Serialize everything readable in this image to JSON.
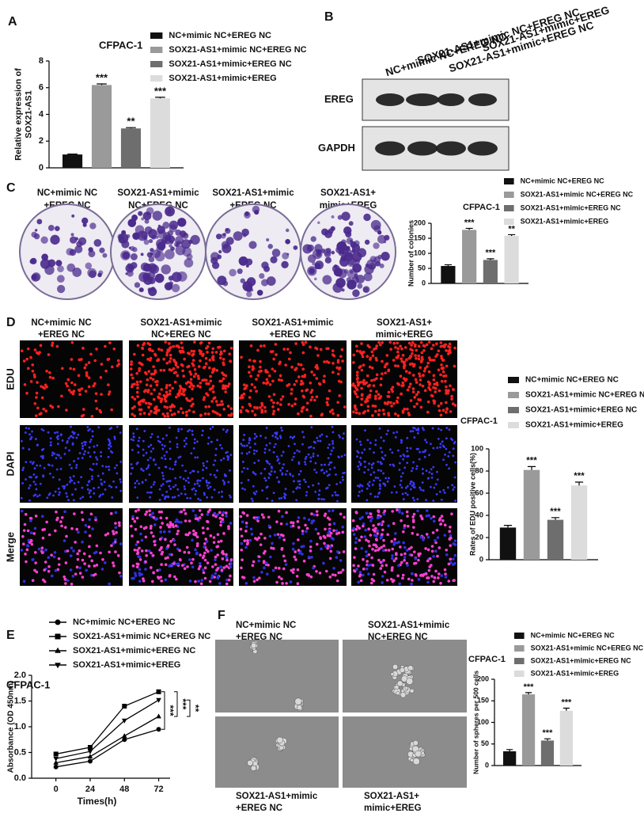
{
  "panel_labels": [
    "A",
    "B",
    "C",
    "D",
    "E",
    "F"
  ],
  "blot": {
    "lanes": [
      "NC+mimic NC+EREG NC",
      "SOX21-AS1+mimic NC+EREG NC",
      "SOX21-AS1+mimic+EREG NC",
      "SOX21-AS1+mimic+EREG"
    ],
    "bands": [
      "EREG",
      "GAPDH"
    ]
  },
  "colony_labels": [
    [
      "NC+mimic NC",
      "+EREG NC"
    ],
    [
      "SOX21-AS1+mimic",
      "NC+EREG NC"
    ],
    [
      "SOX21-AS1+mimic",
      "+EREG NC"
    ],
    [
      "SOX21-AS1+",
      "mimic+EREG"
    ]
  ],
  "edu": {
    "columns": [
      [
        "NC+mimic NC",
        "+EREG NC"
      ],
      [
        "SOX21-AS1+mimic",
        "NC+EREG NC"
      ],
      [
        "SOX21-AS1+mimic",
        "+EREG NC"
      ],
      [
        "SOX21-AS1+",
        "mimic+EREG"
      ]
    ],
    "rows": [
      "EDU",
      "DAPI",
      "Merge"
    ]
  },
  "sphere_labels": [
    [
      "NC+mimic NC",
      "+EREG NC"
    ],
    [
      "SOX21-AS1+mimic",
      "NC+EREG NC"
    ],
    [
      "SOX21-AS1+mimic",
      "+EREG NC"
    ],
    [
      "SOX21-AS1+",
      "mimic+EREG"
    ]
  ],
  "chart_data": [
    {
      "type": "bar",
      "title": "CFPAC-1",
      "ylabel": [
        "Relative expression of",
        "SOX21-AS1"
      ],
      "categories": [
        null
      ],
      "ylim": [
        0,
        8
      ],
      "yticks": [
        0,
        2,
        4,
        6,
        8
      ],
      "series": [
        {
          "name": "NC+mimic NC+EREG NC",
          "color": "#111111",
          "values": [
            1.0
          ],
          "errors": [
            0.03
          ]
        },
        {
          "name": "SOX21-AS1+mimic NC+EREG NC",
          "color": "#9a9a9a",
          "values": [
            6.2
          ],
          "errors": [
            0.08
          ],
          "significance": [
            "***"
          ]
        },
        {
          "name": "SOX21-AS1+mimic+EREG NC",
          "color": "#6e6e6e",
          "values": [
            2.95
          ],
          "errors": [
            0.06
          ],
          "significance": [
            "**"
          ]
        },
        {
          "name": "SOX21-AS1+mimic+EREG",
          "color": "#dcdcdc",
          "values": [
            5.2
          ],
          "errors": [
            0.08
          ],
          "significance": [
            "***"
          ]
        }
      ]
    },
    {
      "type": "bar",
      "title": "CFPAC-1",
      "ylabel": [
        "Number of colonies"
      ],
      "categories": [
        null
      ],
      "ylim": [
        0,
        200
      ],
      "yticks": [
        0,
        50,
        100,
        150,
        200
      ],
      "series": [
        {
          "name": "NC+mimic NC+EREG NC",
          "color": "#111111",
          "values": [
            58
          ],
          "errors": [
            4
          ]
        },
        {
          "name": "SOX21-AS1+mimic NC+EREG NC",
          "color": "#9a9a9a",
          "values": [
            178
          ],
          "errors": [
            5
          ],
          "significance": [
            "***"
          ]
        },
        {
          "name": "SOX21-AS1+mimic+EREG NC",
          "color": "#6e6e6e",
          "values": [
            78
          ],
          "errors": [
            4
          ],
          "significance": [
            "***"
          ]
        },
        {
          "name": "SOX21-AS1+mimic+EREG",
          "color": "#dcdcdc",
          "values": [
            158
          ],
          "errors": [
            4
          ],
          "significance": [
            "**"
          ]
        }
      ]
    },
    {
      "type": "bar",
      "title": "CFPAC-1",
      "ylabel": [
        "Rates of EDU positive cells(%)"
      ],
      "categories": [
        null
      ],
      "ylim": [
        0,
        100
      ],
      "yticks": [
        0,
        20,
        40,
        60,
        80,
        100
      ],
      "series": [
        {
          "name": "NC+mimic NC+EREG NC",
          "color": "#111111",
          "values": [
            29
          ],
          "errors": [
            2
          ]
        },
        {
          "name": "SOX21-AS1+mimic NC+EREG NC",
          "color": "#9a9a9a",
          "values": [
            81
          ],
          "errors": [
            3
          ],
          "significance": [
            "***"
          ]
        },
        {
          "name": "SOX21-AS1+mimic+EREG NC",
          "color": "#6e6e6e",
          "values": [
            36
          ],
          "errors": [
            2
          ],
          "significance": [
            "***"
          ]
        },
        {
          "name": "SOX21-AS1+mimic+EREG",
          "color": "#dcdcdc",
          "values": [
            67
          ],
          "errors": [
            3
          ],
          "significance": [
            "***"
          ]
        }
      ]
    },
    {
      "type": "line",
      "title": "CFPAC-1",
      "ylabel": [
        "Absorbance (OD 450nm)"
      ],
      "xlabel": "Times(h)",
      "x": [
        0,
        24,
        48,
        72
      ],
      "xlim": [
        -17,
        80
      ],
      "xticks": [
        0,
        24,
        48,
        72
      ],
      "ylim": [
        0,
        2
      ],
      "yticks": [
        {
          "value": 0,
          "label": "0.0"
        },
        {
          "value": 0.5,
          "label": "0.5"
        },
        {
          "value": 1,
          "label": "1.0"
        },
        {
          "value": 1.5,
          "label": "1.5"
        },
        {
          "value": 2,
          "label": "2.0"
        }
      ],
      "series": [
        {
          "name": "NC+mimic NC+EREG NC",
          "color": "#000000",
          "marker": "circle",
          "values": [
            0.22,
            0.33,
            0.75,
            0.95
          ]
        },
        {
          "name": "SOX21-AS1+mimic NC+EREG NC",
          "color": "#000000",
          "marker": "square",
          "values": [
            0.47,
            0.6,
            1.4,
            1.68
          ]
        },
        {
          "name": "SOX21-AS1+mimic+EREG NC",
          "color": "#000000",
          "marker": "triangle-up",
          "values": [
            0.3,
            0.42,
            0.82,
            1.2
          ]
        },
        {
          "name": "SOX21-AS1+mimic+EREG",
          "color": "#000000",
          "marker": "triangle-down",
          "values": [
            0.38,
            0.52,
            1.12,
            1.52
          ]
        }
      ],
      "comparisons": [
        "***",
        "***",
        "**"
      ]
    },
    {
      "type": "bar",
      "title": "CFPAC-1",
      "ylabel": [
        "Number of spheres per 500 cells"
      ],
      "categories": [
        null
      ],
      "ylim": [
        0,
        200
      ],
      "yticks": [
        0,
        50,
        100,
        150,
        200
      ],
      "series": [
        {
          "name": "NC+mimic NC+EREG NC",
          "color": "#111111",
          "values": [
            33
          ],
          "errors": [
            4
          ]
        },
        {
          "name": "SOX21-AS1+mimic NC+EREG NC",
          "color": "#9a9a9a",
          "values": [
            165
          ],
          "errors": [
            4
          ],
          "significance": [
            "***"
          ]
        },
        {
          "name": "SOX21-AS1+mimic+EREG NC",
          "color": "#6e6e6e",
          "values": [
            58
          ],
          "errors": [
            4
          ],
          "significance": [
            "***"
          ]
        },
        {
          "name": "SOX21-AS1+mimic+EREG",
          "color": "#dcdcdc",
          "values": [
            127
          ],
          "errors": [
            6
          ],
          "significance": [
            "***"
          ]
        }
      ]
    }
  ]
}
